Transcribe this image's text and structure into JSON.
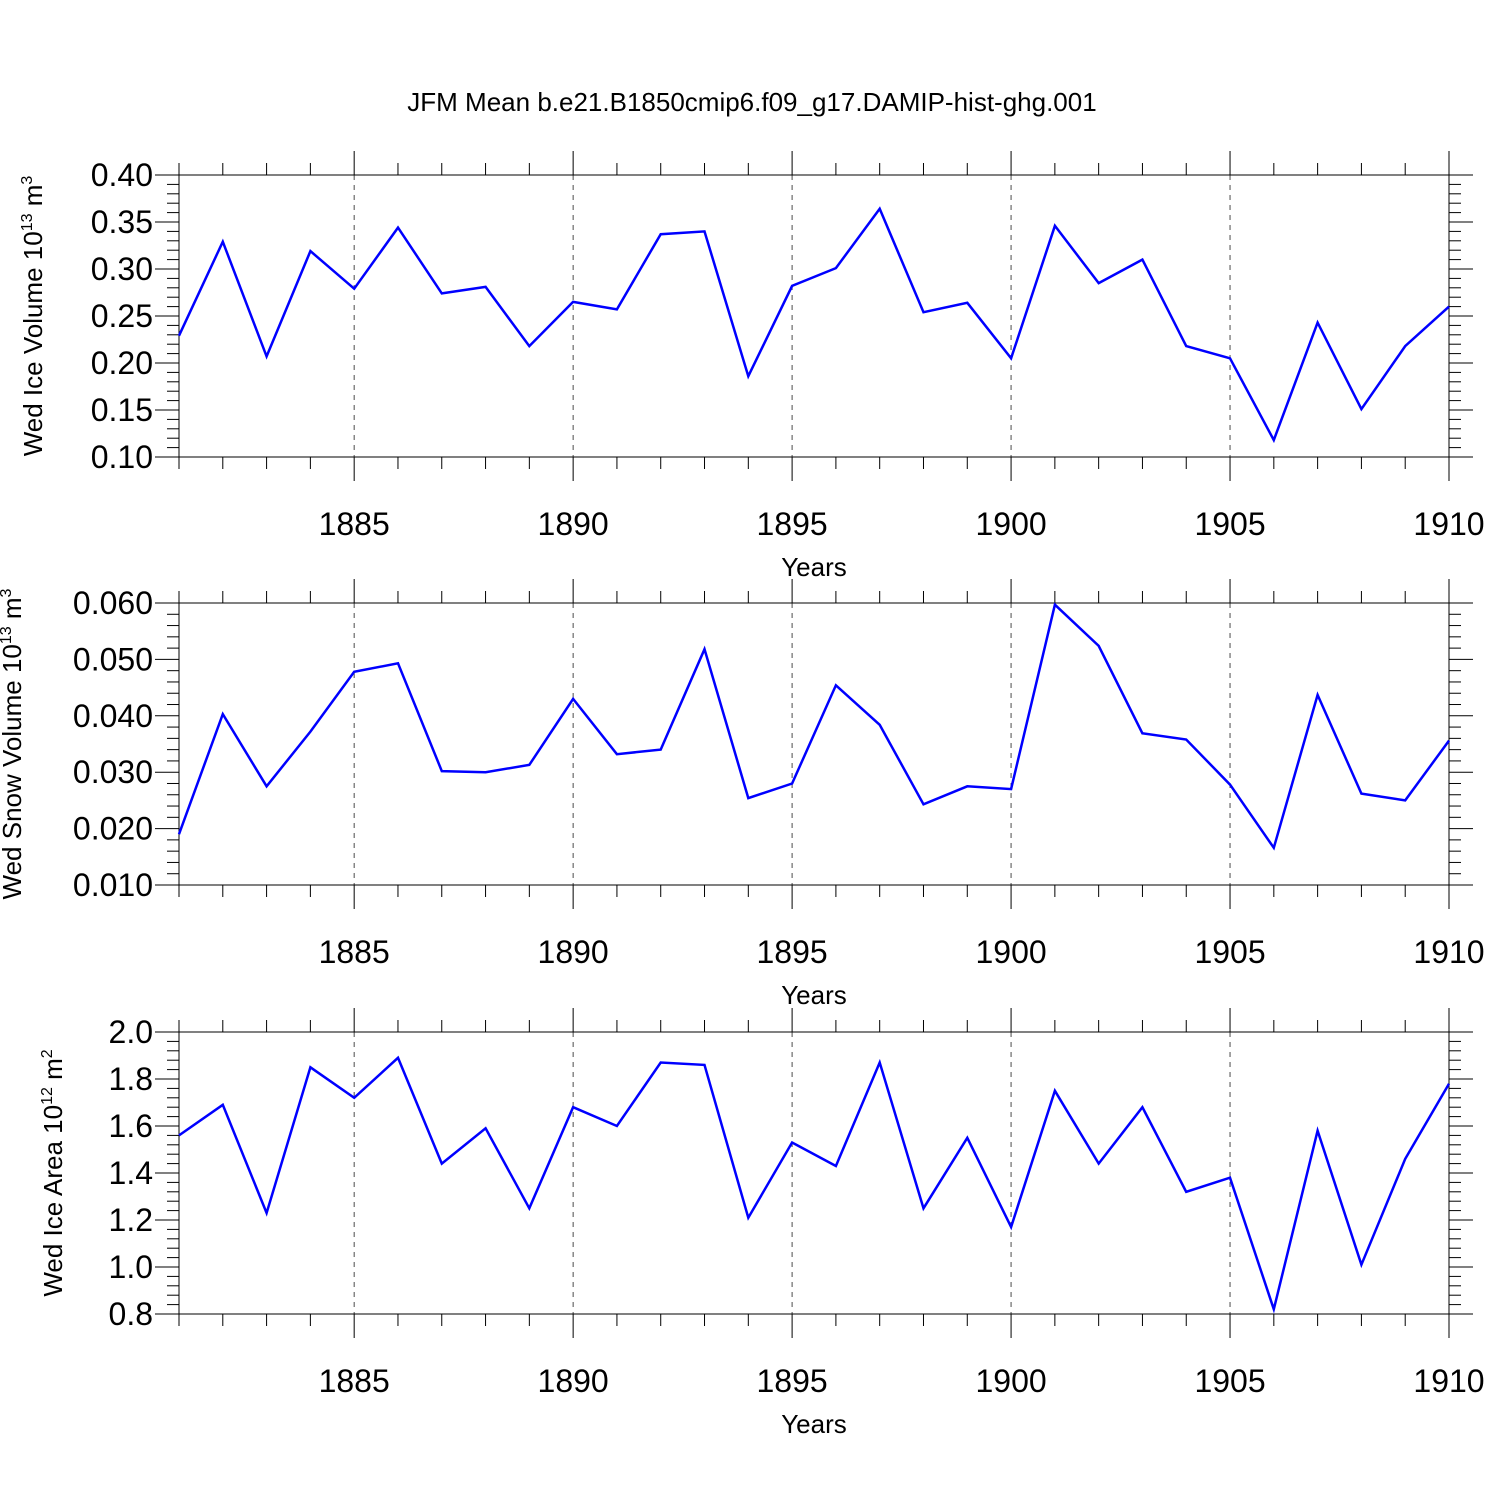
{
  "figure": {
    "title": "JFM Mean b.e21.B1850cmip6.f09_g17.DAMIP-hist-ghg.001"
  },
  "colors": {
    "series_line": "#0000ff",
    "axes": "#000000",
    "grid": "#000000"
  },
  "chart_data": [
    {
      "type": "line",
      "title": "",
      "xlabel": "Years",
      "ylabel": {
        "base": "Wed Ice Volume 10",
        "exp1": "13",
        "mid": " m",
        "exp2": "3"
      },
      "xlim": [
        1881,
        1910
      ],
      "ylim": [
        0.1,
        0.4
      ],
      "xticks": [
        1885,
        1890,
        1895,
        1900,
        1905,
        1910
      ],
      "yticks": [
        0.1,
        0.15,
        0.2,
        0.25,
        0.3,
        0.35,
        0.4
      ],
      "ytick_labels": [
        "0.10",
        "0.15",
        "0.20",
        "0.25",
        "0.30",
        "0.35",
        "0.40"
      ],
      "grid": "vertical dashed at major x ticks",
      "x": [
        1881,
        1882,
        1883,
        1884,
        1885,
        1886,
        1887,
        1888,
        1889,
        1890,
        1891,
        1892,
        1893,
        1894,
        1895,
        1896,
        1897,
        1898,
        1899,
        1900,
        1901,
        1902,
        1903,
        1904,
        1905,
        1906,
        1907,
        1908,
        1909,
        1910
      ],
      "series": [
        {
          "values": [
            0.229,
            0.329,
            0.207,
            0.319,
            0.279,
            0.344,
            0.274,
            0.281,
            0.218,
            0.265,
            0.257,
            0.337,
            0.34,
            0.186,
            0.282,
            0.301,
            0.364,
            0.254,
            0.264,
            0.205,
            0.346,
            0.285,
            0.31,
            0.218,
            0.205,
            0.118,
            0.243,
            0.151,
            0.218,
            0.26
          ]
        }
      ]
    },
    {
      "type": "line",
      "title": "",
      "xlabel": "Years",
      "ylabel": {
        "base": "Wed Snow Volume 10",
        "exp1": "13",
        "mid": " m",
        "exp2": "3"
      },
      "xlim": [
        1881,
        1910
      ],
      "ylim": [
        0.01,
        0.06
      ],
      "xticks": [
        1885,
        1890,
        1895,
        1900,
        1905,
        1910
      ],
      "yticks": [
        0.01,
        0.02,
        0.03,
        0.04,
        0.05,
        0.06
      ],
      "ytick_labels": [
        "0.010",
        "0.020",
        "0.030",
        "0.040",
        "0.050",
        "0.060"
      ],
      "grid": "vertical dashed at major x ticks",
      "x": [
        1881,
        1882,
        1883,
        1884,
        1885,
        1886,
        1887,
        1888,
        1889,
        1890,
        1891,
        1892,
        1893,
        1894,
        1895,
        1896,
        1897,
        1898,
        1899,
        1900,
        1901,
        1902,
        1903,
        1904,
        1905,
        1906,
        1907,
        1908,
        1909,
        1910
      ],
      "series": [
        {
          "values": [
            0.019,
            0.0403,
            0.0275,
            0.0372,
            0.0478,
            0.0493,
            0.0302,
            0.03,
            0.0313,
            0.043,
            0.0332,
            0.034,
            0.0518,
            0.0254,
            0.028,
            0.0454,
            0.0384,
            0.0243,
            0.0275,
            0.027,
            0.0597,
            0.0524,
            0.0369,
            0.0358,
            0.0278,
            0.0166,
            0.0437,
            0.0262,
            0.025,
            0.0356
          ]
        }
      ]
    },
    {
      "type": "line",
      "title": "",
      "xlabel": "Years",
      "ylabel": {
        "base": "Wed Ice Area 10",
        "exp1": "12",
        "mid": " m",
        "exp2": "2"
      },
      "xlim": [
        1881,
        1910
      ],
      "ylim": [
        0.8,
        2.0
      ],
      "xticks": [
        1885,
        1890,
        1895,
        1900,
        1905,
        1910
      ],
      "yticks": [
        0.8,
        1.0,
        1.2,
        1.4,
        1.6,
        1.8,
        2.0
      ],
      "ytick_labels": [
        "0.8",
        "1.0",
        "1.2",
        "1.4",
        "1.6",
        "1.8",
        "2.0"
      ],
      "grid": "vertical dashed at major x ticks",
      "x": [
        1881,
        1882,
        1883,
        1884,
        1885,
        1886,
        1887,
        1888,
        1889,
        1890,
        1891,
        1892,
        1893,
        1894,
        1895,
        1896,
        1897,
        1898,
        1899,
        1900,
        1901,
        1902,
        1903,
        1904,
        1905,
        1906,
        1907,
        1908,
        1909,
        1910
      ],
      "series": [
        {
          "values": [
            1.56,
            1.69,
            1.23,
            1.85,
            1.72,
            1.89,
            1.44,
            1.59,
            1.25,
            1.68,
            1.6,
            1.87,
            1.86,
            1.21,
            1.53,
            1.43,
            1.87,
            1.25,
            1.55,
            1.17,
            1.75,
            1.44,
            1.68,
            1.32,
            1.38,
            0.82,
            1.58,
            1.01,
            1.46,
            1.78
          ]
        }
      ]
    }
  ]
}
